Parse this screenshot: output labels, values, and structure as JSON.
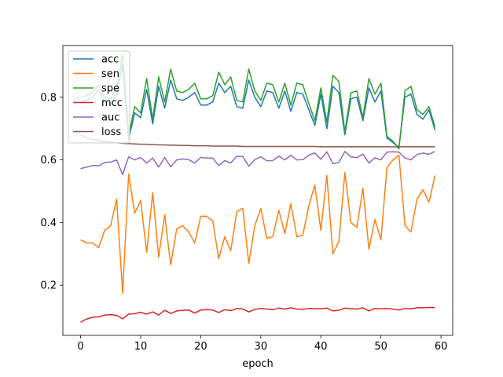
{
  "chart_data": {
    "type": "line",
    "title": "",
    "xlabel": "epoch",
    "ylabel": "",
    "xlim": [
      -2.95,
      61.95
    ],
    "ylim": [
      0.04,
      0.965
    ],
    "xticks": [
      0,
      10,
      20,
      30,
      40,
      50,
      60
    ],
    "yticks": [
      0.2,
      0.4,
      0.6,
      0.8
    ],
    "xtick_labels": [
      "0",
      "10",
      "20",
      "30",
      "40",
      "50",
      "60"
    ],
    "ytick_labels": [
      "0.2",
      "0.4",
      "0.6",
      "0.8"
    ],
    "grid": false,
    "legend_position": "upper-left",
    "x": [
      0,
      1,
      2,
      3,
      4,
      5,
      6,
      7,
      8,
      9,
      10,
      11,
      12,
      13,
      14,
      15,
      16,
      17,
      18,
      19,
      20,
      21,
      22,
      23,
      24,
      25,
      26,
      27,
      28,
      29,
      30,
      31,
      32,
      33,
      34,
      35,
      36,
      37,
      38,
      39,
      40,
      41,
      42,
      43,
      44,
      45,
      46,
      47,
      48,
      49,
      50,
      51,
      52,
      53,
      54,
      55,
      56,
      57,
      58,
      59
    ],
    "series": [
      {
        "name": "acc",
        "color": "#1f77b4",
        "values": [
          0.785,
          0.79,
          0.8,
          0.825,
          0.785,
          0.775,
          0.81,
          0.905,
          0.665,
          0.75,
          0.735,
          0.825,
          0.715,
          0.835,
          0.765,
          0.855,
          0.795,
          0.79,
          0.8,
          0.815,
          0.775,
          0.775,
          0.785,
          0.845,
          0.815,
          0.835,
          0.77,
          0.765,
          0.855,
          0.8,
          0.77,
          0.82,
          0.815,
          0.765,
          0.82,
          0.755,
          0.815,
          0.81,
          0.76,
          0.71,
          0.81,
          0.7,
          0.835,
          0.815,
          0.68,
          0.795,
          0.8,
          0.725,
          0.83,
          0.785,
          0.82,
          0.67,
          0.655,
          0.64,
          0.8,
          0.81,
          0.745,
          0.73,
          0.76,
          0.695
        ]
      },
      {
        "name": "sen",
        "color": "#ff7f0e",
        "values": [
          0.345,
          0.335,
          0.335,
          0.32,
          0.375,
          0.39,
          0.475,
          0.175,
          0.555,
          0.43,
          0.47,
          0.305,
          0.495,
          0.29,
          0.425,
          0.265,
          0.38,
          0.39,
          0.37,
          0.335,
          0.42,
          0.42,
          0.405,
          0.285,
          0.355,
          0.31,
          0.435,
          0.445,
          0.27,
          0.39,
          0.445,
          0.35,
          0.355,
          0.44,
          0.365,
          0.46,
          0.355,
          0.36,
          0.455,
          0.52,
          0.375,
          0.55,
          0.3,
          0.34,
          0.56,
          0.4,
          0.385,
          0.51,
          0.315,
          0.41,
          0.345,
          0.575,
          0.6,
          0.615,
          0.39,
          0.37,
          0.475,
          0.505,
          0.465,
          0.55
        ]
      },
      {
        "name": "spe",
        "color": "#2ca02c",
        "values": [
          0.8,
          0.805,
          0.815,
          0.84,
          0.8,
          0.795,
          0.83,
          0.935,
          0.68,
          0.77,
          0.75,
          0.86,
          0.73,
          0.865,
          0.785,
          0.89,
          0.82,
          0.815,
          0.825,
          0.845,
          0.795,
          0.795,
          0.805,
          0.88,
          0.84,
          0.865,
          0.79,
          0.785,
          0.89,
          0.82,
          0.79,
          0.845,
          0.84,
          0.785,
          0.845,
          0.775,
          0.845,
          0.84,
          0.78,
          0.725,
          0.83,
          0.72,
          0.87,
          0.85,
          0.69,
          0.815,
          0.82,
          0.735,
          0.86,
          0.81,
          0.845,
          0.675,
          0.66,
          0.635,
          0.82,
          0.835,
          0.76,
          0.745,
          0.77,
          0.705
        ]
      },
      {
        "name": "mcc",
        "color": "#d62728",
        "values": [
          0.082,
          0.092,
          0.098,
          0.099,
          0.105,
          0.106,
          0.104,
          0.093,
          0.108,
          0.109,
          0.114,
          0.108,
          0.115,
          0.105,
          0.12,
          0.11,
          0.118,
          0.12,
          0.121,
          0.111,
          0.121,
          0.122,
          0.121,
          0.113,
          0.122,
          0.119,
          0.126,
          0.124,
          0.115,
          0.123,
          0.126,
          0.124,
          0.122,
          0.127,
          0.124,
          0.128,
          0.124,
          0.123,
          0.126,
          0.125,
          0.125,
          0.127,
          0.118,
          0.12,
          0.127,
          0.125,
          0.124,
          0.128,
          0.118,
          0.126,
          0.125,
          0.126,
          0.124,
          0.121,
          0.126,
          0.125,
          0.128,
          0.128,
          0.129,
          0.129
        ]
      },
      {
        "name": "auc",
        "color": "#9467bd",
        "values": [
          0.572,
          0.577,
          0.582,
          0.581,
          0.592,
          0.593,
          0.6,
          0.553,
          0.61,
          0.6,
          0.608,
          0.59,
          0.606,
          0.577,
          0.608,
          0.578,
          0.6,
          0.603,
          0.601,
          0.59,
          0.608,
          0.606,
          0.606,
          0.582,
          0.598,
          0.59,
          0.612,
          0.611,
          0.58,
          0.601,
          0.61,
          0.597,
          0.598,
          0.612,
          0.6,
          0.615,
          0.6,
          0.601,
          0.615,
          0.622,
          0.602,
          0.626,
          0.588,
          0.592,
          0.627,
          0.61,
          0.607,
          0.619,
          0.59,
          0.607,
          0.6,
          0.625,
          0.626,
          0.625,
          0.606,
          0.6,
          0.617,
          0.622,
          0.618,
          0.627
        ]
      },
      {
        "name": "loss",
        "color": "#8c564b",
        "values": [
          0.68,
          0.67,
          0.665,
          0.662,
          0.659,
          0.657,
          0.655,
          0.653,
          0.652,
          0.651,
          0.65,
          0.65,
          0.649,
          0.648,
          0.648,
          0.647,
          0.647,
          0.646,
          0.646,
          0.645,
          0.645,
          0.645,
          0.644,
          0.644,
          0.644,
          0.644,
          0.644,
          0.643,
          0.643,
          0.643,
          0.643,
          0.643,
          0.643,
          0.643,
          0.643,
          0.643,
          0.643,
          0.643,
          0.643,
          0.643,
          0.642,
          0.642,
          0.642,
          0.642,
          0.642,
          0.642,
          0.642,
          0.642,
          0.642,
          0.642,
          0.642,
          0.642,
          0.642,
          0.642,
          0.642,
          0.642,
          0.642,
          0.642,
          0.642,
          0.642
        ]
      }
    ]
  }
}
